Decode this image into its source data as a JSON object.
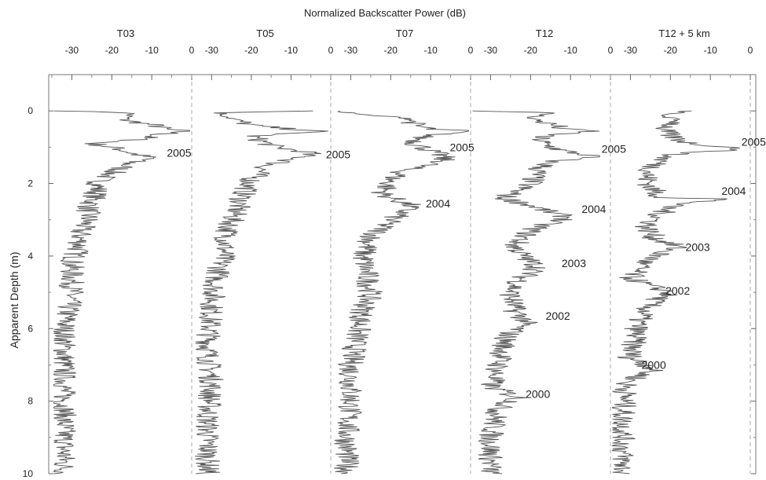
{
  "chart_data": {
    "type": "line",
    "title": "Normalized Backscatter Power (dB)",
    "ylabel": "Apparent Depth (m)",
    "ylim": [
      10,
      -1.0
    ],
    "y_ticks": [
      0,
      2,
      4,
      6,
      8,
      10
    ],
    "y_tick_labels": [
      "0",
      "2",
      "4",
      "6",
      "8",
      "10"
    ],
    "xlim": [
      -35,
      0
    ],
    "x_ticks": [
      -30,
      -20,
      -10,
      0
    ],
    "x_tick_labels": [
      "-30",
      "-20",
      "-10",
      "0"
    ],
    "grid": false,
    "line_color": "#555555",
    "panels": [
      {
        "name": "T03",
        "profile": [
          [
            0,
            -33
          ],
          [
            0.05,
            -15
          ],
          [
            0.25,
            -17
          ],
          [
            0.4,
            -9
          ],
          [
            0.5,
            -7
          ],
          [
            0.55,
            -1
          ],
          [
            0.65,
            -8
          ],
          [
            0.8,
            -14
          ],
          [
            0.9,
            -25
          ],
          [
            1.05,
            -18
          ],
          [
            1.2,
            -14
          ],
          [
            1.3,
            -10
          ],
          [
            1.4,
            -15
          ],
          [
            1.6,
            -18
          ],
          [
            1.9,
            -23
          ],
          [
            2.3,
            -24
          ],
          [
            2.7,
            -26
          ],
          [
            3.0,
            -26
          ],
          [
            3.3,
            -28
          ],
          [
            3.7,
            -28
          ],
          [
            4.2,
            -30
          ],
          [
            5.0,
            -30
          ],
          [
            6.0,
            -32
          ],
          [
            7.0,
            -32
          ],
          [
            8.0,
            -32
          ],
          [
            9.0,
            -32
          ],
          [
            10.0,
            -32
          ]
        ],
        "annotations": [
          {
            "label": "2005",
            "depth": 1.15,
            "value": -7
          }
        ]
      },
      {
        "name": "T05",
        "profile": [
          [
            0,
            -5
          ],
          [
            0.05,
            -28
          ],
          [
            0.2,
            -25
          ],
          [
            0.4,
            -20
          ],
          [
            0.5,
            -10
          ],
          [
            0.55,
            -2
          ],
          [
            0.7,
            -20
          ],
          [
            0.85,
            -17
          ],
          [
            1.0,
            -14
          ],
          [
            1.15,
            -5
          ],
          [
            1.3,
            -8
          ],
          [
            1.5,
            -16
          ],
          [
            1.9,
            -20
          ],
          [
            2.3,
            -22
          ],
          [
            2.8,
            -24
          ],
          [
            3.3,
            -26
          ],
          [
            4.0,
            -27
          ],
          [
            4.7,
            -29
          ],
          [
            5.5,
            -30
          ],
          [
            6.5,
            -31
          ],
          [
            7.5,
            -30
          ],
          [
            8.5,
            -31
          ],
          [
            9.5,
            -31
          ],
          [
            10.0,
            -31
          ]
        ],
        "annotations": [
          {
            "label": "2005",
            "depth": 1.2,
            "value": -2
          }
        ]
      },
      {
        "name": "T07",
        "profile": [
          [
            0,
            -34
          ],
          [
            0.1,
            -28
          ],
          [
            0.2,
            -15
          ],
          [
            0.4,
            -14
          ],
          [
            0.5,
            -10
          ],
          [
            0.55,
            -1
          ],
          [
            0.7,
            -12
          ],
          [
            0.9,
            -14
          ],
          [
            1.1,
            -10
          ],
          [
            1.25,
            -7
          ],
          [
            1.4,
            -7
          ],
          [
            1.6,
            -16
          ],
          [
            1.9,
            -20
          ],
          [
            2.3,
            -22
          ],
          [
            2.6,
            -15
          ],
          [
            2.8,
            -17
          ],
          [
            3.0,
            -20
          ],
          [
            3.5,
            -25
          ],
          [
            4.0,
            -27
          ],
          [
            4.5,
            -26
          ],
          [
            5.0,
            -25
          ],
          [
            5.5,
            -27
          ],
          [
            6.0,
            -28
          ],
          [
            7.0,
            -30
          ],
          [
            8.0,
            -30
          ],
          [
            9.0,
            -31
          ],
          [
            10.0,
            -31
          ]
        ],
        "annotations": [
          {
            "label": "2005",
            "depth": 1.0,
            "value": -6
          },
          {
            "label": "2004",
            "depth": 2.55,
            "value": -12
          }
        ]
      },
      {
        "name": "T12",
        "profile": [
          [
            0,
            -34
          ],
          [
            0.05,
            -15
          ],
          [
            0.2,
            -20
          ],
          [
            0.4,
            -14
          ],
          [
            0.5,
            -12
          ],
          [
            0.55,
            -4
          ],
          [
            0.7,
            -18
          ],
          [
            0.9,
            -17
          ],
          [
            1.1,
            -12
          ],
          [
            1.25,
            -4
          ],
          [
            1.4,
            -15
          ],
          [
            1.6,
            -18
          ],
          [
            2.0,
            -20
          ],
          [
            2.4,
            -27
          ],
          [
            2.6,
            -20
          ],
          [
            2.8,
            -15
          ],
          [
            2.95,
            -10
          ],
          [
            3.1,
            -16
          ],
          [
            3.3,
            -20
          ],
          [
            3.7,
            -24
          ],
          [
            4.0,
            -22
          ],
          [
            4.3,
            -18
          ],
          [
            4.6,
            -22
          ],
          [
            5.0,
            -25
          ],
          [
            5.5,
            -24
          ],
          [
            5.8,
            -21
          ],
          [
            6.2,
            -26
          ],
          [
            7.0,
            -28
          ],
          [
            7.6,
            -30
          ],
          [
            7.9,
            -23
          ],
          [
            8.2,
            -28
          ],
          [
            9.0,
            -30
          ],
          [
            10.0,
            -30
          ]
        ],
        "annotations": [
          {
            "label": "2005",
            "depth": 1.05,
            "value": -3
          },
          {
            "label": "2004",
            "depth": 2.7,
            "value": -8
          },
          {
            "label": "2003",
            "depth": 4.2,
            "value": -13
          },
          {
            "label": "2002",
            "depth": 5.65,
            "value": -17
          },
          {
            "label": "2000",
            "depth": 7.8,
            "value": -22
          }
        ]
      },
      {
        "name": "T12 + 5 km",
        "profile": [
          [
            0,
            -15
          ],
          [
            0.1,
            -22
          ],
          [
            0.3,
            -18
          ],
          [
            0.5,
            -22
          ],
          [
            0.7,
            -20
          ],
          [
            0.9,
            -15
          ],
          [
            1.0,
            -5
          ],
          [
            1.05,
            -2
          ],
          [
            1.2,
            -20
          ],
          [
            1.5,
            -24
          ],
          [
            1.8,
            -26
          ],
          [
            2.1,
            -25
          ],
          [
            2.4,
            -22
          ],
          [
            2.42,
            -6
          ],
          [
            2.6,
            -20
          ],
          [
            2.9,
            -23
          ],
          [
            3.2,
            -26
          ],
          [
            3.5,
            -24
          ],
          [
            3.75,
            -18
          ],
          [
            3.9,
            -22
          ],
          [
            4.2,
            -27
          ],
          [
            4.6,
            -30
          ],
          [
            4.8,
            -26
          ],
          [
            5.0,
            -20
          ],
          [
            5.3,
            -25
          ],
          [
            5.8,
            -28
          ],
          [
            6.3,
            -29
          ],
          [
            6.8,
            -30
          ],
          [
            7.1,
            -24
          ],
          [
            7.5,
            -31
          ],
          [
            8.5,
            -32
          ],
          [
            9.5,
            -32
          ],
          [
            10.0,
            -32
          ]
        ],
        "annotations": [
          {
            "label": "2005",
            "depth": 0.85,
            "value": -3
          },
          {
            "label": "2004",
            "depth": 2.2,
            "value": -8
          },
          {
            "label": "2003",
            "depth": 3.75,
            "value": -17
          },
          {
            "label": "2002",
            "depth": 4.95,
            "value": -22
          },
          {
            "label": "2000",
            "depth": 7.0,
            "value": -28
          }
        ]
      }
    ]
  }
}
